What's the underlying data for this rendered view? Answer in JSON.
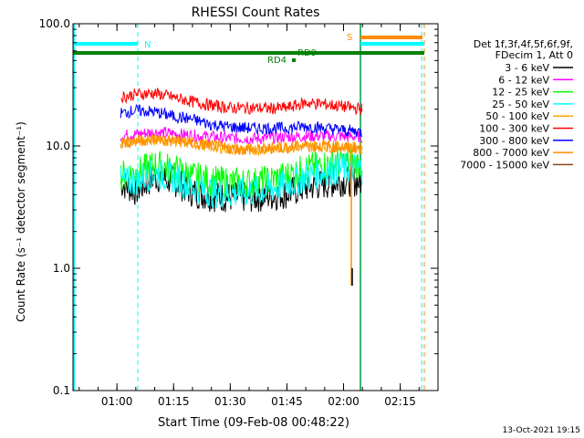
{
  "chart_data": {
    "type": "line",
    "title": "RHESSI Count Rates",
    "xlabel": "Start Time (09-Feb-08 00:48:22)",
    "ylabel": "Count Rate (s⁻¹ detector segment⁻¹)",
    "yscale": "log",
    "ylim": [
      0.1,
      100
    ],
    "xlim": [
      "00:48:22",
      "02:25:00"
    ],
    "x_tick_labels": [
      "01:00",
      "01:15",
      "01:30",
      "01:45",
      "02:00",
      "02:15"
    ],
    "y_tick_labels": [
      "0.1",
      "1.0",
      "10.0",
      "100.0"
    ],
    "legend_header": [
      "Det 1f,3f,4f,5f,6f,9f,",
      "FDecim 1, Att 0"
    ],
    "legend_position": "right",
    "series": [
      {
        "name": "3 - 6 keV",
        "color": "#000000",
        "points": [
          [
            "01:01",
            5.0
          ],
          [
            "01:05",
            4.3
          ],
          [
            "01:10",
            5.6
          ],
          [
            "01:15",
            5.2
          ],
          [
            "01:20",
            4.2
          ],
          [
            "01:25",
            3.9
          ],
          [
            "01:30",
            3.8
          ],
          [
            "01:35",
            3.8
          ],
          [
            "01:40",
            3.9
          ],
          [
            "01:45",
            4.1
          ],
          [
            "01:50",
            4.6
          ],
          [
            "01:55",
            4.9
          ],
          [
            "02:00",
            5.2
          ],
          [
            "02:05",
            5.1
          ]
        ]
      },
      {
        "name": "6 - 12 keV",
        "color": "#ff00ff",
        "points": [
          [
            "01:01",
            12.2
          ],
          [
            "01:05",
            12.5
          ],
          [
            "01:10",
            13.0
          ],
          [
            "01:15",
            12.6
          ],
          [
            "01:20",
            12.2
          ],
          [
            "01:25",
            11.9
          ],
          [
            "01:30",
            11.6
          ],
          [
            "01:35",
            11.5
          ],
          [
            "01:40",
            11.6
          ],
          [
            "01:45",
            11.9
          ],
          [
            "01:50",
            12.0
          ],
          [
            "01:55",
            12.1
          ],
          [
            "02:00",
            12.0
          ],
          [
            "02:05",
            11.9
          ]
        ]
      },
      {
        "name": "12 - 25 keV",
        "color": "#00ff00",
        "points": [
          [
            "01:01",
            5.8
          ],
          [
            "01:05",
            6.0
          ],
          [
            "01:10",
            7.0
          ],
          [
            "01:15",
            6.5
          ],
          [
            "01:20",
            5.6
          ],
          [
            "01:25",
            5.2
          ],
          [
            "01:30",
            5.0
          ],
          [
            "01:35",
            5.0
          ],
          [
            "01:40",
            5.2
          ],
          [
            "01:45",
            5.7
          ],
          [
            "01:50",
            6.5
          ],
          [
            "01:55",
            7.0
          ],
          [
            "02:00",
            7.3
          ],
          [
            "02:05",
            7.2
          ]
        ]
      },
      {
        "name": "25 - 50 keV",
        "color": "#00ffff",
        "points": [
          [
            "01:01",
            5.0
          ],
          [
            "01:05",
            5.2
          ],
          [
            "01:10",
            6.0
          ],
          [
            "01:15",
            5.5
          ],
          [
            "01:20",
            4.6
          ],
          [
            "01:25",
            4.2
          ],
          [
            "01:30",
            4.1
          ],
          [
            "01:35",
            4.2
          ],
          [
            "01:40",
            4.4
          ],
          [
            "01:45",
            4.8
          ],
          [
            "01:50",
            5.6
          ],
          [
            "01:55",
            6.2
          ],
          [
            "02:00",
            6.6
          ],
          [
            "02:05",
            6.5
          ]
        ]
      },
      {
        "name": "50 - 100 keV",
        "color": "#ffa500",
        "points": [
          [
            "01:01",
            10.6
          ],
          [
            "01:05",
            11.0
          ],
          [
            "01:10",
            11.3
          ],
          [
            "01:15",
            11.0
          ],
          [
            "01:20",
            10.5
          ],
          [
            "01:25",
            10.0
          ],
          [
            "01:30",
            9.5
          ],
          [
            "01:35",
            9.3
          ],
          [
            "01:40",
            9.5
          ],
          [
            "01:45",
            9.8
          ],
          [
            "01:50",
            10.0
          ],
          [
            "01:55",
            10.0
          ],
          [
            "02:00",
            9.8
          ],
          [
            "02:05",
            9.6
          ]
        ]
      },
      {
        "name": "100 - 300 keV",
        "color": "#ff0000",
        "points": [
          [
            "01:01",
            25.0
          ],
          [
            "01:05",
            26.5
          ],
          [
            "01:10",
            27.0
          ],
          [
            "01:15",
            25.0
          ],
          [
            "01:20",
            23.0
          ],
          [
            "01:25",
            21.5
          ],
          [
            "01:30",
            20.5
          ],
          [
            "01:35",
            20.5
          ],
          [
            "01:40",
            20.3
          ],
          [
            "01:45",
            20.5
          ],
          [
            "01:50",
            22.5
          ],
          [
            "01:55",
            22.0
          ],
          [
            "02:00",
            21.0
          ],
          [
            "02:05",
            20.0
          ]
        ]
      },
      {
        "name": "300 - 800 keV",
        "color": "#0000ff",
        "points": [
          [
            "01:01",
            18.5
          ],
          [
            "01:05",
            19.5
          ],
          [
            "01:10",
            19.0
          ],
          [
            "01:15",
            17.5
          ],
          [
            "01:20",
            16.5
          ],
          [
            "01:25",
            15.0
          ],
          [
            "01:30",
            14.3
          ],
          [
            "01:35",
            14.0
          ],
          [
            "01:40",
            14.0
          ],
          [
            "01:45",
            14.0
          ],
          [
            "01:50",
            14.5
          ],
          [
            "01:55",
            14.0
          ],
          [
            "02:00",
            13.5
          ],
          [
            "02:05",
            13.0
          ]
        ]
      },
      {
        "name": "800 - 7000 keV",
        "color": "#ff8c00",
        "points": [
          [
            "01:01",
            10.6
          ],
          [
            "01:05",
            11.0
          ],
          [
            "01:10",
            11.3
          ],
          [
            "01:15",
            11.0
          ],
          [
            "01:20",
            10.5
          ],
          [
            "01:25",
            10.0
          ],
          [
            "01:30",
            9.5
          ],
          [
            "01:35",
            9.3
          ],
          [
            "01:40",
            9.5
          ],
          [
            "01:45",
            9.8
          ],
          [
            "01:50",
            10.0
          ],
          [
            "01:55",
            10.0
          ],
          [
            "02:00",
            9.8
          ],
          [
            "02:05",
            9.6
          ]
        ]
      },
      {
        "name": "7000 - 15000 keV",
        "color": "#8b4513",
        "points": []
      }
    ],
    "annotations": [
      {
        "label": "N",
        "color": "#00ffff"
      },
      {
        "label": "S",
        "color": "#ff8c00"
      },
      {
        "label": "RD4",
        "color": "#008000"
      },
      {
        "label": "RD9",
        "color": "#008000"
      }
    ],
    "attenuator_bar_color": "#008000",
    "flag_colors": {
      "saa": "#ff8c00",
      "night": "#00ffff",
      "decim": "#008000",
      "grid": "#3cb371"
    }
  },
  "footer_date": "13-Oct-2021 19:15"
}
